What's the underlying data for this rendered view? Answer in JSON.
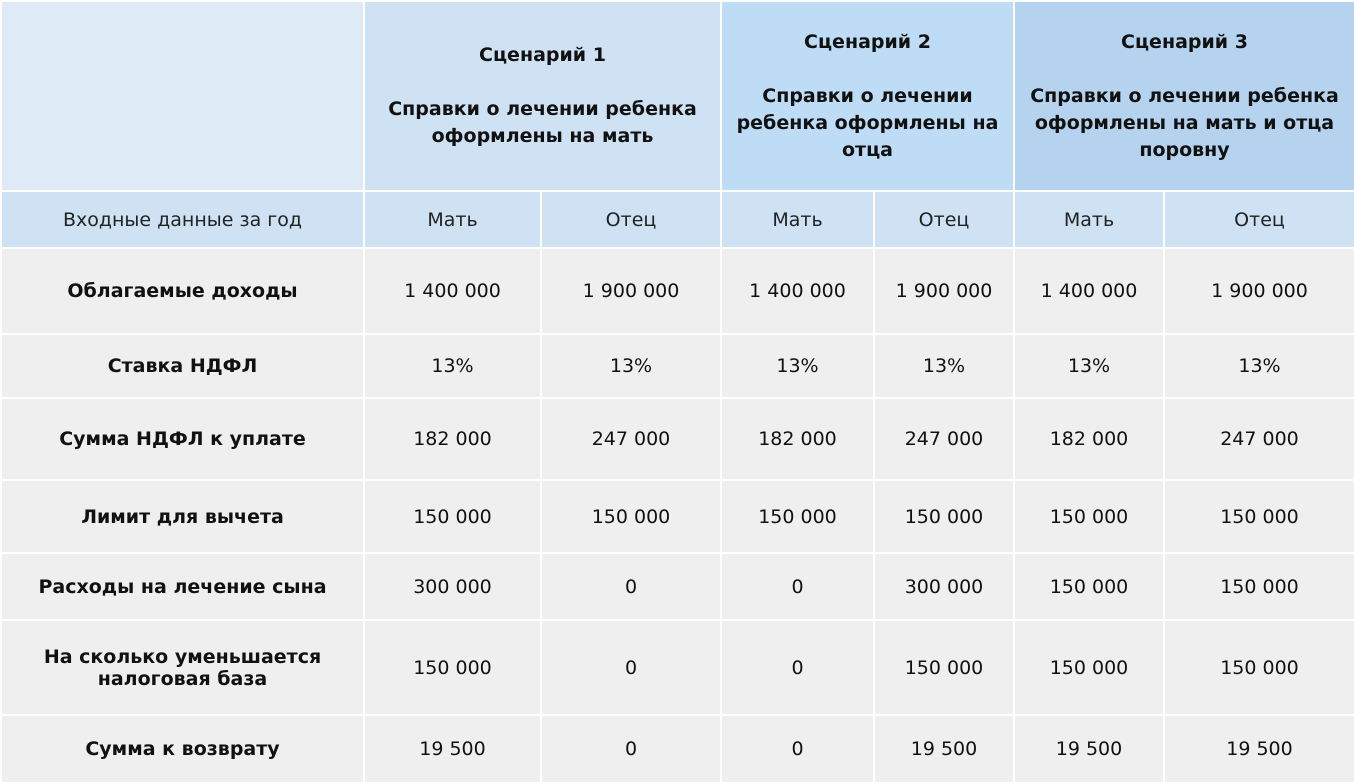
{
  "scenarios": [
    {
      "title": "Сценарий 1",
      "desc": "Справки о лечении ребенка оформлены на мать"
    },
    {
      "title": "Сценарий 2",
      "desc": "Справки о лечении ребенка оформлены на отца"
    },
    {
      "title": "Сценарий 3",
      "desc": "Справки о лечении ребенка оформлены на мать и отца поровну"
    }
  ],
  "subheader": {
    "label": "Входные данные за год",
    "cols": [
      "Мать",
      "Отец",
      "Мать",
      "Отец",
      "Мать",
      "Отец"
    ]
  },
  "rows": [
    {
      "label": "Облагаемые доходы",
      "values": [
        "1 400 000",
        "1 900 000",
        "1 400 000",
        "1 900 000",
        "1 400 000",
        "1 900 000"
      ]
    },
    {
      "label": "Ставка НДФЛ",
      "values": [
        "13%",
        "13%",
        "13%",
        "13%",
        "13%",
        "13%"
      ]
    },
    {
      "label": "Сумма НДФЛ к уплате",
      "values": [
        "182 000",
        "247 000",
        "182 000",
        "247 000",
        "182 000",
        "247 000"
      ]
    },
    {
      "label": "Лимит для вычета",
      "values": [
        "150 000",
        "150 000",
        "150 000",
        "150 000",
        "150 000",
        "150 000"
      ]
    },
    {
      "label": "Расходы на лечение сына",
      "values": [
        "300 000",
        "0",
        "0",
        "300 000",
        "150 000",
        "150 000"
      ]
    },
    {
      "label": "На сколько уменьшается налоговая база",
      "values": [
        "150 000",
        "0",
        "0",
        "150 000",
        "150 000",
        "150 000"
      ]
    },
    {
      "label": "Сумма к возврату",
      "values": [
        "19 500",
        "0",
        "0",
        "19 500",
        "19 500",
        "19 500"
      ]
    }
  ]
}
